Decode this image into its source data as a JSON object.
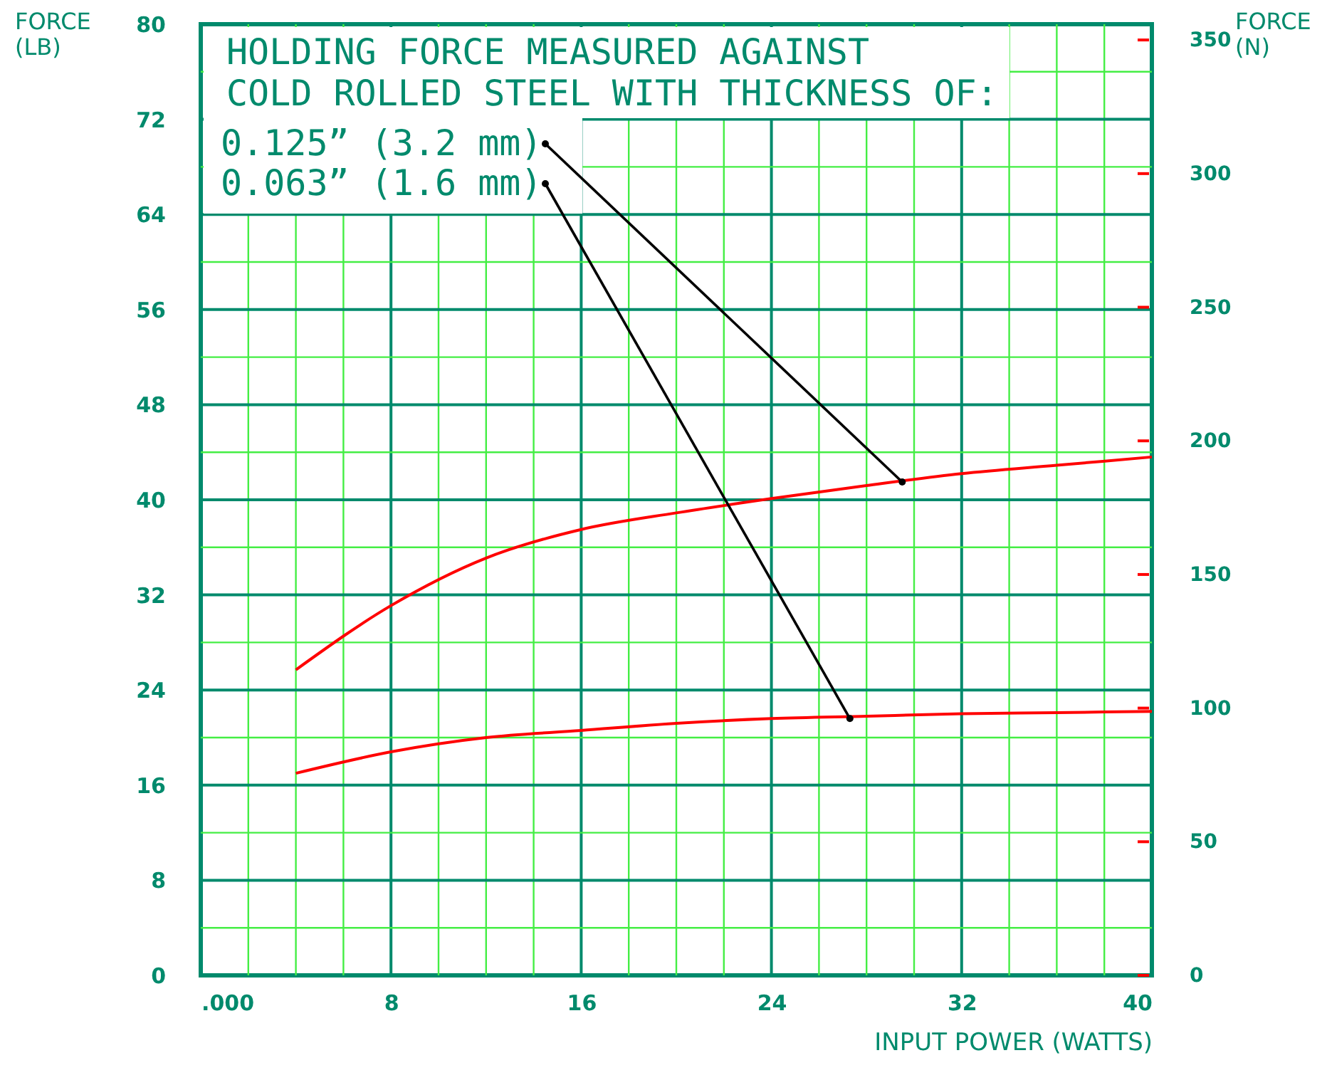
{
  "chart_data": {
    "type": "line",
    "title": "HOLDING FORCE MEASURED AGAINST\nCOLD ROLLED STEEL WITH THICKNESS OF:",
    "xlabel": "INPUT POWER (WATTS)",
    "ylabel": "FORCE\n(LB)",
    "y2label": "FORCE\n(N)",
    "x": [
      4,
      8,
      12,
      16,
      20,
      24,
      28,
      32,
      36,
      40
    ],
    "series": [
      {
        "color": "#ff0000",
        "values": [
          25.7,
          31.1,
          35.1,
          37.5,
          38.9,
          40.1,
          41.2,
          42.2,
          42.9,
          43.6
        ]
      },
      {
        "color": "#ff0000",
        "values": [
          17.0,
          18.8,
          20.0,
          20.6,
          21.2,
          21.6,
          21.8,
          22.0,
          22.1,
          22.2
        ]
      }
    ],
    "annotations": [
      {
        "text": "0.125” (3.2 mm)",
        "x": 29.5,
        "y": 41.5
      },
      {
        "text": "0.063” (1.6 mm)",
        "x": 27.3,
        "y": 21.6
      }
    ],
    "xlim": [
      0,
      40
    ],
    "xticks": [
      {
        "value": 0,
        "label": ".000"
      },
      {
        "value": 2,
        "label": null
      },
      {
        "value": 4,
        "label": null
      },
      {
        "value": 6,
        "label": null
      },
      8,
      {
        "value": 10,
        "label": null
      },
      {
        "value": 12,
        "label": null
      },
      {
        "value": 14,
        "label": null
      },
      16,
      {
        "value": 18,
        "label": null
      },
      {
        "value": 20,
        "label": null
      },
      {
        "value": 22,
        "label": null
      },
      24,
      {
        "value": 26,
        "label": null
      },
      {
        "value": 28,
        "label": null
      },
      {
        "value": 30,
        "label": null
      },
      32,
      {
        "value": 34,
        "label": null
      },
      {
        "value": 36,
        "label": null
      },
      {
        "value": 38,
        "label": null
      },
      40
    ],
    "ylim": [
      0,
      80
    ],
    "yticks": [
      0,
      {
        "value": 4,
        "label": null
      },
      8,
      {
        "value": 12,
        "label": null
      },
      16,
      {
        "value": 20,
        "label": null
      },
      24,
      {
        "value": 28,
        "label": null
      },
      32,
      {
        "value": 36,
        "label": null
      },
      40,
      {
        "value": 44,
        "label": null
      },
      48,
      {
        "value": 52,
        "label": null
      },
      56,
      {
        "value": 60,
        "label": null
      },
      64,
      {
        "value": 68,
        "label": null
      },
      72,
      {
        "value": 76,
        "label": null
      },
      80
    ],
    "y2lim": [
      0,
      355.9
    ],
    "y2ticks": [
      0,
      50,
      100,
      150,
      200,
      250,
      300,
      350
    ],
    "grid": true,
    "marker": "none",
    "line_style": "solid"
  }
}
